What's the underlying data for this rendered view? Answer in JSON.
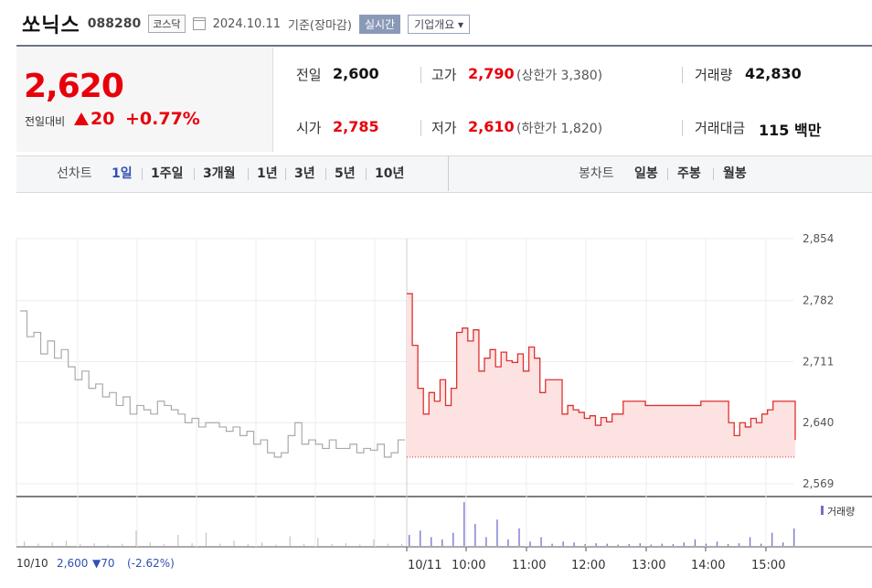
{
  "header": {
    "name": "쏘닉스",
    "code": "088280",
    "market": "코스닥",
    "date": "2024.10.11",
    "basis": "기준(장마감)",
    "live_button": "실시간",
    "info_button": "기업개요 ▾"
  },
  "price": {
    "current": "2,620",
    "compare_label": "전일대비",
    "change": "20",
    "change_pct": "+0.77%"
  },
  "stats": {
    "prev_label": "전일",
    "prev": "2,600",
    "open_label": "시가",
    "open": "2,785",
    "high_label": "고가",
    "high": "2,790",
    "upper_limit": "(상한가 3,380)",
    "low_label": "저가",
    "low": "2,610",
    "lower_limit": "(하한가 1,820)",
    "volume_label": "거래량",
    "volume": "42,830",
    "amount_label": "거래대금",
    "amount": "115 백만"
  },
  "line_tabs": {
    "label": "선차트",
    "items": [
      "1일",
      "1주일",
      "3개월",
      "1년",
      "3년",
      "5년",
      "10년"
    ],
    "active": "1일"
  },
  "candle_tabs": {
    "label": "봉차트",
    "items": [
      "일봉",
      "주봉",
      "월봉"
    ]
  },
  "chart_data": {
    "type": "line",
    "ylim": [
      2569,
      2854
    ],
    "y_ticks": [
      "2,854",
      "2,782",
      "2,711",
      "2,640",
      "2,569"
    ],
    "x_ticks": [
      "10/11",
      "10:00",
      "11:00",
      "12:00",
      "13:00",
      "14:00",
      "15:00"
    ],
    "volume_legend": "거래량",
    "previous_day": {
      "date": "10/10",
      "close": "2,600",
      "change": "▼70",
      "change_pct": "(-2.62%)",
      "color": "#aaaaaa",
      "values": [
        2770,
        2740,
        2745,
        2720,
        2735,
        2715,
        2725,
        2705,
        2690,
        2700,
        2680,
        2685,
        2670,
        2675,
        2660,
        2670,
        2650,
        2660,
        2655,
        2650,
        2665,
        2660,
        2655,
        2650,
        2640,
        2645,
        2635,
        2640,
        2640,
        2635,
        2630,
        2635,
        2625,
        2630,
        2615,
        2620,
        2605,
        2600,
        2605,
        2625,
        2640,
        2615,
        2620,
        2615,
        2610,
        2620,
        2610,
        2610,
        2615,
        2605,
        2610,
        2608,
        2615,
        2600,
        2605,
        2620,
        2620
      ]
    },
    "today": {
      "color": "#e03030",
      "fill": "#fde2e2",
      "base": 2600,
      "values": [
        2790,
        2730,
        2680,
        2650,
        2675,
        2665,
        2690,
        2660,
        2680,
        2745,
        2750,
        2735,
        2748,
        2700,
        2715,
        2725,
        2705,
        2722,
        2712,
        2710,
        2720,
        2700,
        2728,
        2715,
        2675,
        2690,
        2690,
        2690,
        2650,
        2660,
        2655,
        2652,
        2645,
        2648,
        2637,
        2646,
        2641,
        2650,
        2650,
        2665,
        2665,
        2665,
        2665,
        2660,
        2660,
        2660,
        2660,
        2660,
        2660,
        2660,
        2660,
        2660,
        2660,
        2665,
        2665,
        2665,
        2665,
        2665,
        2640,
        2625,
        2640,
        2635,
        2645,
        2640,
        2650,
        2655,
        2665,
        2665,
        2665,
        2665,
        2620
      ]
    },
    "volume_prev": [
      0.1,
      0.05,
      0.08,
      0.12,
      0.04,
      0.06,
      0.03,
      0.05,
      0.35,
      0.08,
      0.04,
      0.25,
      0.06,
      0.3,
      0.05,
      0.12,
      0.04,
      0.08,
      0.03,
      0.22,
      0.05,
      0.18,
      0.04,
      0.06,
      0.03,
      0.15,
      0.05,
      0.04
    ],
    "volume_today": [
      0.25,
      0.35,
      0.2,
      0.15,
      0.3,
      1.0,
      0.5,
      0.2,
      0.6,
      0.15,
      0.4,
      0.1,
      0.2,
      0.05,
      0.1,
      0.08,
      0.04,
      0.06,
      0.05,
      0.03,
      0.04,
      0.06,
      0.03,
      0.05,
      0.04,
      0.08,
      0.15,
      0.05,
      0.1,
      0.04,
      0.06,
      0.2,
      0.05,
      0.3,
      0.08,
      0.4
    ]
  }
}
